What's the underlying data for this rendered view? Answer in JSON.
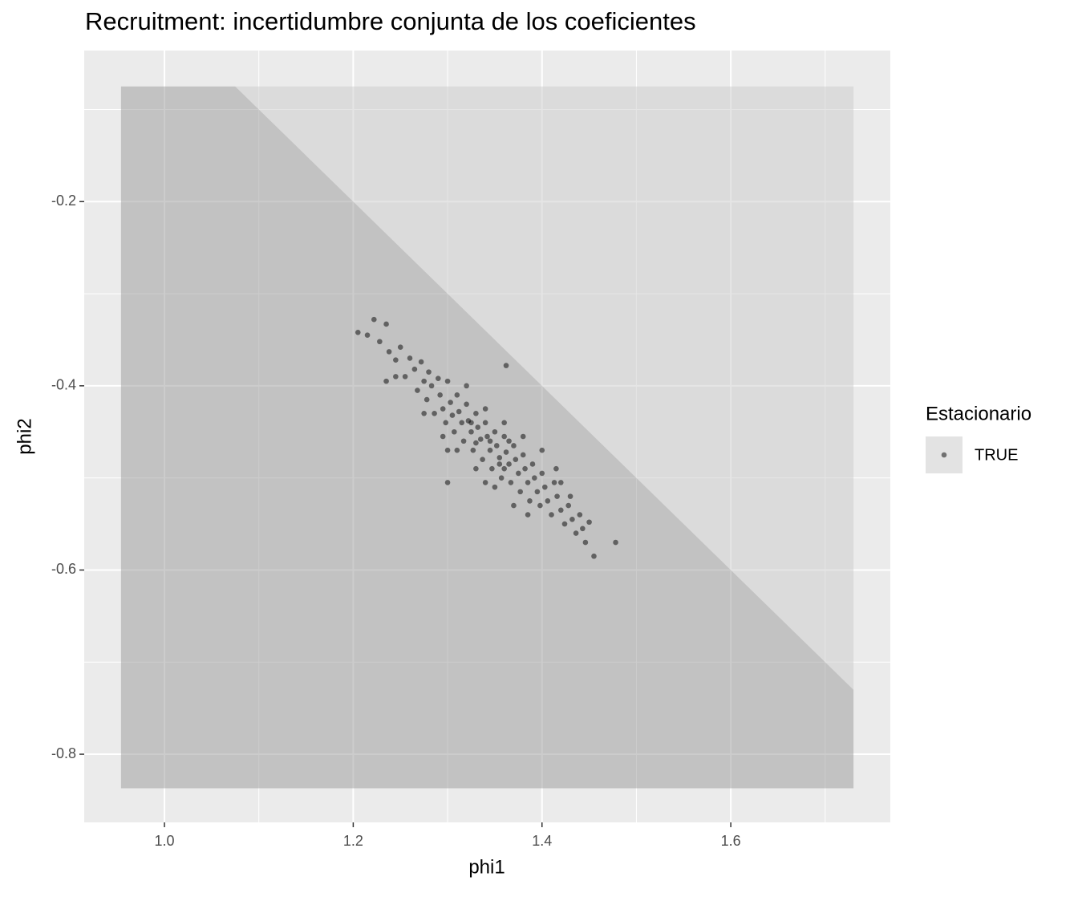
{
  "chart_data": {
    "type": "scatter",
    "title": "Recruitment: incertidumbre conjunta de los coeficientes",
    "x_label": "phi1",
    "y_label": "phi2",
    "xlim": [
      0.915,
      1.769
    ],
    "ylim": [
      -0.874,
      -0.036
    ],
    "xticks": [
      {
        "value": 1,
        "label": "1.0"
      },
      1.2,
      1.4,
      1.6
    ],
    "yticks": [
      -0.8,
      -0.6,
      -0.4,
      -0.2
    ],
    "x_minor_grid": [
      1.1,
      1.3,
      1.5,
      1.7
    ],
    "y_minor_grid": [
      -0.7,
      -0.5,
      -0.3,
      -0.1
    ],
    "grid": true,
    "region": {
      "x_range": [
        0.954,
        1.73
      ],
      "y_range": [
        -0.837,
        -0.075
      ],
      "boundary_intercept": 1,
      "boundary_slope": -1,
      "inside_color": "#999999",
      "outside_color": "#cccccc",
      "alpha": 0.5
    },
    "legend_title": "Estacionario",
    "legend_position": "right",
    "series": [
      {
        "name": "TRUE",
        "color": "#000000",
        "alpha": 0.5,
        "x": [
          1.205,
          1.215,
          1.222,
          1.228,
          1.235,
          1.238,
          1.245,
          1.25,
          1.255,
          1.26,
          1.265,
          1.268,
          1.272,
          1.275,
          1.278,
          1.28,
          1.283,
          1.286,
          1.29,
          1.292,
          1.295,
          1.298,
          1.3,
          1.303,
          1.305,
          1.307,
          1.31,
          1.312,
          1.315,
          1.317,
          1.32,
          1.322,
          1.325,
          1.327,
          1.33,
          1.332,
          1.335,
          1.337,
          1.34,
          1.342,
          1.345,
          1.347,
          1.35,
          1.352,
          1.355,
          1.357,
          1.36,
          1.362,
          1.365,
          1.367,
          1.37,
          1.372,
          1.375,
          1.377,
          1.38,
          1.382,
          1.385,
          1.387,
          1.39,
          1.392,
          1.395,
          1.398,
          1.4,
          1.403,
          1.406,
          1.41,
          1.413,
          1.416,
          1.42,
          1.424,
          1.428,
          1.432,
          1.436,
          1.44,
          1.443,
          1.446,
          1.45,
          1.455,
          1.478,
          1.295,
          1.31,
          1.33,
          1.35,
          1.32,
          1.34,
          1.36,
          1.38,
          1.4,
          1.415,
          1.275,
          1.3,
          1.34,
          1.37,
          1.385,
          1.36,
          1.345,
          1.33,
          1.355,
          1.365,
          1.325,
          1.42,
          1.43,
          1.362,
          1.3,
          1.245,
          1.235
        ],
        "values": [
          -0.342,
          -0.345,
          -0.328,
          -0.352,
          -0.333,
          -0.363,
          -0.372,
          -0.358,
          -0.39,
          -0.37,
          -0.382,
          -0.405,
          -0.374,
          -0.395,
          -0.415,
          -0.385,
          -0.4,
          -0.43,
          -0.392,
          -0.41,
          -0.425,
          -0.44,
          -0.395,
          -0.418,
          -0.432,
          -0.45,
          -0.41,
          -0.428,
          -0.44,
          -0.46,
          -0.42,
          -0.438,
          -0.45,
          -0.47,
          -0.43,
          -0.445,
          -0.458,
          -0.48,
          -0.44,
          -0.455,
          -0.47,
          -0.49,
          -0.45,
          -0.465,
          -0.478,
          -0.5,
          -0.455,
          -0.472,
          -0.485,
          -0.505,
          -0.465,
          -0.48,
          -0.495,
          -0.515,
          -0.475,
          -0.49,
          -0.505,
          -0.525,
          -0.485,
          -0.5,
          -0.515,
          -0.53,
          -0.495,
          -0.51,
          -0.525,
          -0.54,
          -0.505,
          -0.52,
          -0.535,
          -0.55,
          -0.53,
          -0.545,
          -0.56,
          -0.54,
          -0.555,
          -0.57,
          -0.548,
          -0.585,
          -0.57,
          -0.455,
          -0.47,
          -0.49,
          -0.51,
          -0.4,
          -0.425,
          -0.44,
          -0.455,
          -0.47,
          -0.49,
          -0.43,
          -0.47,
          -0.505,
          -0.53,
          -0.54,
          -0.49,
          -0.46,
          -0.462,
          -0.485,
          -0.46,
          -0.44,
          -0.505,
          -0.52,
          -0.378,
          -0.505,
          -0.39,
          -0.395
        ]
      }
    ]
  }
}
